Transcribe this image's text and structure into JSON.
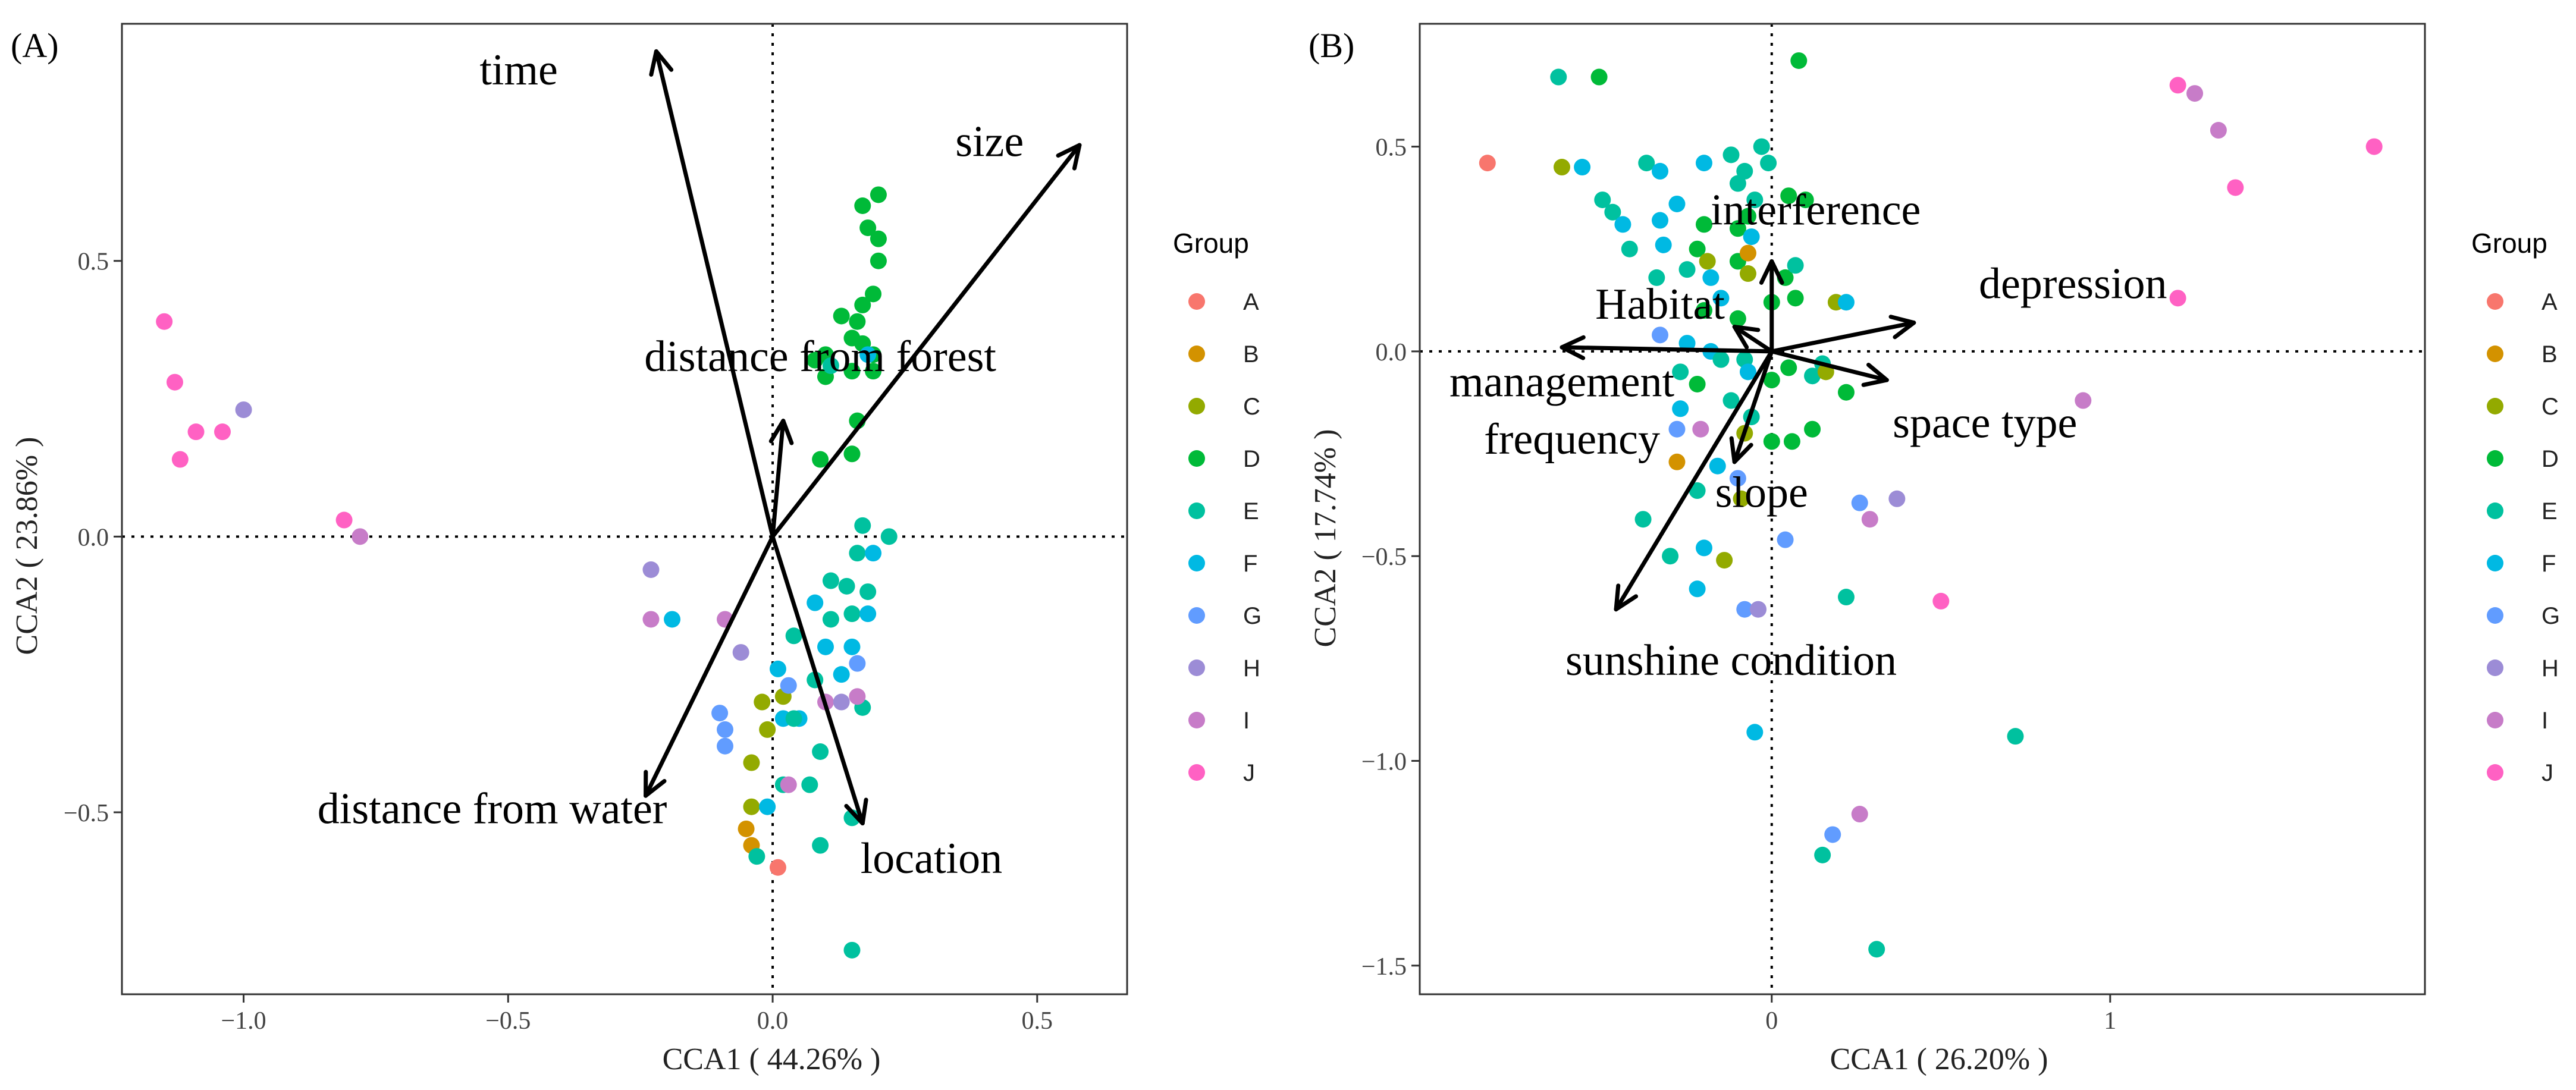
{
  "colors": {
    "A": "#F8766D",
    "B": "#D39200",
    "C": "#93AA00",
    "D": "#00BA38",
    "E": "#00C19F",
    "F": "#00B9E3",
    "G": "#619CFF",
    "H": "#9C8CD6",
    "I": "#C77CC8",
    "J": "#FF61C3"
  },
  "chart_data": [
    {
      "type": "scatter",
      "panel_label": "(A)",
      "xlabel": "CCA1 ( 44.26% )",
      "ylabel": "CCA2 ( 23.86% )",
      "xlim": [
        -1.23,
        0.67
      ],
      "ylim": [
        -0.83,
        0.93
      ],
      "xticks": [
        -1.0,
        -0.5,
        0.0,
        0.5
      ],
      "xtick_labels": [
        "−1.0",
        "−0.5",
        "0.0",
        "0.5"
      ],
      "yticks": [
        -0.5,
        0.0,
        0.5
      ],
      "ytick_labels": [
        "−0.5",
        "0.0",
        "0.5"
      ],
      "legend_title": "Group",
      "legend_entries": [
        "A",
        "B",
        "C",
        "D",
        "E",
        "F",
        "G",
        "H",
        "I",
        "J"
      ],
      "arrows": [
        {
          "label": "time",
          "end": [
            -0.22,
            0.88
          ],
          "label_pos": [
            -0.48,
            0.82
          ]
        },
        {
          "label": "size",
          "end": [
            0.58,
            0.71
          ],
          "label_pos": [
            0.41,
            0.69
          ]
        },
        {
          "label": "distance from forest",
          "end": [
            0.02,
            0.21
          ],
          "label_pos": [
            0.09,
            0.3
          ]
        },
        {
          "label": "distance from water",
          "end": [
            -0.24,
            -0.47
          ],
          "label_pos": [
            -0.53,
            -0.52
          ]
        },
        {
          "label": "location",
          "end": [
            0.17,
            -0.52
          ],
          "label_pos": [
            0.3,
            -0.61
          ]
        }
      ],
      "points": [
        {
          "g": "J",
          "x": -1.15,
          "y": 0.39
        },
        {
          "g": "J",
          "x": -1.13,
          "y": 0.28
        },
        {
          "g": "J",
          "x": -1.09,
          "y": 0.19
        },
        {
          "g": "J",
          "x": -1.04,
          "y": 0.19
        },
        {
          "g": "J",
          "x": -1.12,
          "y": 0.14
        },
        {
          "g": "H",
          "x": -1.0,
          "y": 0.23
        },
        {
          "g": "J",
          "x": -0.81,
          "y": 0.03
        },
        {
          "g": "I",
          "x": -0.78,
          "y": 0.0
        },
        {
          "g": "H",
          "x": -0.23,
          "y": -0.06
        },
        {
          "g": "I",
          "x": -0.23,
          "y": -0.15
        },
        {
          "g": "F",
          "x": -0.19,
          "y": -0.15
        },
        {
          "g": "I",
          "x": -0.09,
          "y": -0.15
        },
        {
          "g": "H",
          "x": -0.06,
          "y": -0.21
        },
        {
          "g": "G",
          "x": -0.1,
          "y": -0.32
        },
        {
          "g": "G",
          "x": -0.09,
          "y": -0.35
        },
        {
          "g": "G",
          "x": -0.09,
          "y": -0.38
        },
        {
          "g": "C",
          "x": -0.04,
          "y": -0.41
        },
        {
          "g": "C",
          "x": -0.04,
          "y": -0.49
        },
        {
          "g": "B",
          "x": -0.05,
          "y": -0.53
        },
        {
          "g": "B",
          "x": -0.04,
          "y": -0.56
        },
        {
          "g": "E",
          "x": -0.03,
          "y": -0.58
        },
        {
          "g": "A",
          "x": 0.01,
          "y": -0.6
        },
        {
          "g": "F",
          "x": -0.01,
          "y": -0.49
        },
        {
          "g": "C",
          "x": -0.02,
          "y": -0.3
        },
        {
          "g": "C",
          "x": 0.02,
          "y": -0.29
        },
        {
          "g": "C",
          "x": -0.01,
          "y": -0.35
        },
        {
          "g": "F",
          "x": 0.02,
          "y": -0.33
        },
        {
          "g": "F",
          "x": 0.05,
          "y": -0.33
        },
        {
          "g": "F",
          "x": 0.01,
          "y": -0.24
        },
        {
          "g": "E",
          "x": 0.04,
          "y": -0.18
        },
        {
          "g": "G",
          "x": 0.03,
          "y": -0.27
        },
        {
          "g": "I",
          "x": 0.1,
          "y": -0.3
        },
        {
          "g": "E",
          "x": 0.08,
          "y": -0.26
        },
        {
          "g": "F",
          "x": 0.1,
          "y": -0.2
        },
        {
          "g": "F",
          "x": 0.08,
          "y": -0.12
        },
        {
          "g": "E",
          "x": 0.11,
          "y": -0.08
        },
        {
          "g": "E",
          "x": 0.11,
          "y": -0.15
        },
        {
          "g": "E",
          "x": 0.14,
          "y": -0.09
        },
        {
          "g": "E",
          "x": 0.15,
          "y": -0.14
        },
        {
          "g": "F",
          "x": 0.15,
          "y": -0.2
        },
        {
          "g": "F",
          "x": 0.13,
          "y": -0.25
        },
        {
          "g": "E",
          "x": 0.16,
          "y": -0.03
        },
        {
          "g": "E",
          "x": 0.17,
          "y": 0.02
        },
        {
          "g": "E",
          "x": 0.22,
          "y": 0.0
        },
        {
          "g": "F",
          "x": 0.19,
          "y": -0.03
        },
        {
          "g": "E",
          "x": 0.18,
          "y": -0.1
        },
        {
          "g": "F",
          "x": 0.18,
          "y": -0.14
        },
        {
          "g": "G",
          "x": 0.16,
          "y": -0.23
        },
        {
          "g": "E",
          "x": 0.17,
          "y": -0.31
        },
        {
          "g": "I",
          "x": 0.16,
          "y": -0.29
        },
        {
          "g": "H",
          "x": 0.13,
          "y": -0.3
        },
        {
          "g": "E",
          "x": 0.09,
          "y": -0.39
        },
        {
          "g": "E",
          "x": 0.02,
          "y": -0.45
        },
        {
          "g": "I",
          "x": 0.03,
          "y": -0.45
        },
        {
          "g": "E",
          "x": 0.07,
          "y": -0.45
        },
        {
          "g": "E",
          "x": 0.09,
          "y": -0.56
        },
        {
          "g": "E",
          "x": 0.15,
          "y": -0.51
        },
        {
          "g": "E",
          "x": 0.15,
          "y": -0.75
        },
        {
          "g": "E",
          "x": 0.04,
          "y": -0.33
        },
        {
          "g": "D",
          "x": 0.17,
          "y": 0.6
        },
        {
          "g": "D",
          "x": 0.2,
          "y": 0.62
        },
        {
          "g": "D",
          "x": 0.18,
          "y": 0.56
        },
        {
          "g": "D",
          "x": 0.2,
          "y": 0.54
        },
        {
          "g": "D",
          "x": 0.2,
          "y": 0.5
        },
        {
          "g": "D",
          "x": 0.19,
          "y": 0.44
        },
        {
          "g": "D",
          "x": 0.17,
          "y": 0.42
        },
        {
          "g": "D",
          "x": 0.16,
          "y": 0.39
        },
        {
          "g": "D",
          "x": 0.13,
          "y": 0.4
        },
        {
          "g": "D",
          "x": 0.15,
          "y": 0.36
        },
        {
          "g": "D",
          "x": 0.17,
          "y": 0.35
        },
        {
          "g": "D",
          "x": 0.19,
          "y": 0.33
        },
        {
          "g": "D",
          "x": 0.1,
          "y": 0.33
        },
        {
          "g": "D",
          "x": 0.08,
          "y": 0.32
        },
        {
          "g": "D",
          "x": 0.15,
          "y": 0.3
        },
        {
          "g": "D",
          "x": 0.19,
          "y": 0.3
        },
        {
          "g": "D",
          "x": 0.1,
          "y": 0.29
        },
        {
          "g": "D",
          "x": 0.16,
          "y": 0.21
        },
        {
          "g": "D",
          "x": 0.15,
          "y": 0.15
        },
        {
          "g": "D",
          "x": 0.09,
          "y": 0.14
        },
        {
          "g": "F",
          "x": 0.18,
          "y": 0.33
        },
        {
          "g": "E",
          "x": 0.11,
          "y": 0.31
        }
      ]
    },
    {
      "type": "scatter",
      "panel_label": "(B)",
      "xlabel": "CCA1 ( 26.20% )",
      "ylabel": "CCA2 ( 17.74% )",
      "xlim": [
        -1.04,
        1.93
      ],
      "ylim": [
        -1.57,
        0.8
      ],
      "xticks": [
        0,
        1
      ],
      "xtick_labels": [
        "0",
        "1"
      ],
      "yticks": [
        -1.5,
        -1.0,
        -0.5,
        0.0,
        0.5
      ],
      "ytick_labels": [
        "−1.5",
        "−1.0",
        "−0.5",
        "0.0",
        "0.5"
      ],
      "legend_title": "Group",
      "legend_entries": [
        "A",
        "B",
        "C",
        "D",
        "E",
        "F",
        "G",
        "H",
        "I",
        "J"
      ],
      "arrows": [
        {
          "label": "interference",
          "end": [
            0.0,
            0.22
          ],
          "label_pos": [
            0.13,
            0.31
          ]
        },
        {
          "label": "depression",
          "end": [
            0.42,
            0.07
          ],
          "label_pos": [
            0.89,
            0.13
          ]
        },
        {
          "label": "Habitat",
          "end": [
            -0.11,
            0.06
          ],
          "label_pos": [
            -0.33,
            0.08
          ]
        },
        {
          "label": "management",
          "end": [
            -0.62,
            0.01
          ],
          "label_pos": [
            -0.62,
            -0.11
          ]
        },
        {
          "label": "frequency",
          "end": [
            -0.62,
            0.01
          ],
          "label_pos": [
            -0.59,
            -0.25
          ]
        },
        {
          "label": "space type",
          "end": [
            0.34,
            -0.07
          ],
          "label_pos": [
            0.63,
            -0.21
          ]
        },
        {
          "label": "slope",
          "end": [
            -0.11,
            -0.27
          ],
          "label_pos": [
            -0.03,
            -0.38
          ]
        },
        {
          "label": "sunshine condition",
          "end": [
            -0.46,
            -0.63
          ],
          "label_pos": [
            -0.12,
            -0.79
          ]
        }
      ],
      "points": [
        {
          "g": "A",
          "x": -0.84,
          "y": 0.46
        },
        {
          "g": "C",
          "x": -0.62,
          "y": 0.45
        },
        {
          "g": "F",
          "x": -0.56,
          "y": 0.45
        },
        {
          "g": "E",
          "x": -0.63,
          "y": 0.67
        },
        {
          "g": "D",
          "x": -0.51,
          "y": 0.67
        },
        {
          "g": "E",
          "x": -0.5,
          "y": 0.37
        },
        {
          "g": "E",
          "x": -0.47,
          "y": 0.34
        },
        {
          "g": "F",
          "x": -0.44,
          "y": 0.31
        },
        {
          "g": "E",
          "x": -0.42,
          "y": 0.25
        },
        {
          "g": "E",
          "x": -0.37,
          "y": 0.46
        },
        {
          "g": "F",
          "x": -0.33,
          "y": 0.44
        },
        {
          "g": "F",
          "x": -0.33,
          "y": 0.32
        },
        {
          "g": "F",
          "x": -0.28,
          "y": 0.36
        },
        {
          "g": "F",
          "x": -0.2,
          "y": 0.46
        },
        {
          "g": "E",
          "x": -0.12,
          "y": 0.48
        },
        {
          "g": "E",
          "x": -0.08,
          "y": 0.44
        },
        {
          "g": "E",
          "x": -0.03,
          "y": 0.5
        },
        {
          "g": "D",
          "x": 0.08,
          "y": 0.71
        },
        {
          "g": "E",
          "x": -0.01,
          "y": 0.46
        },
        {
          "g": "E",
          "x": -0.1,
          "y": 0.41
        },
        {
          "g": "D",
          "x": 0.05,
          "y": 0.38
        },
        {
          "g": "E",
          "x": -0.05,
          "y": 0.37
        },
        {
          "g": "D",
          "x": 0.1,
          "y": 0.37
        },
        {
          "g": "D",
          "x": -0.07,
          "y": 0.33
        },
        {
          "g": "D",
          "x": -0.1,
          "y": 0.3
        },
        {
          "g": "D",
          "x": -0.2,
          "y": 0.31
        },
        {
          "g": "F",
          "x": -0.06,
          "y": 0.28
        },
        {
          "g": "D",
          "x": -0.22,
          "y": 0.25
        },
        {
          "g": "C",
          "x": -0.19,
          "y": 0.22
        },
        {
          "g": "F",
          "x": -0.32,
          "y": 0.26
        },
        {
          "g": "E",
          "x": -0.34,
          "y": 0.18
        },
        {
          "g": "E",
          "x": -0.25,
          "y": 0.2
        },
        {
          "g": "D",
          "x": -0.1,
          "y": 0.22
        },
        {
          "g": "B",
          "x": -0.07,
          "y": 0.24
        },
        {
          "g": "F",
          "x": -0.18,
          "y": 0.18
        },
        {
          "g": "F",
          "x": -0.15,
          "y": 0.13
        },
        {
          "g": "C",
          "x": -0.07,
          "y": 0.19
        },
        {
          "g": "D",
          "x": 0.04,
          "y": 0.18
        },
        {
          "g": "D",
          "x": 0.07,
          "y": 0.13
        },
        {
          "g": "D",
          "x": 0.0,
          "y": 0.12
        },
        {
          "g": "E",
          "x": 0.07,
          "y": 0.21
        },
        {
          "g": "C",
          "x": 0.19,
          "y": 0.12
        },
        {
          "g": "F",
          "x": 0.22,
          "y": 0.12
        },
        {
          "g": "D",
          "x": -0.2,
          "y": 0.1
        },
        {
          "g": "D",
          "x": -0.1,
          "y": 0.08
        },
        {
          "g": "G",
          "x": -0.33,
          "y": 0.04
        },
        {
          "g": "F",
          "x": -0.25,
          "y": 0.02
        },
        {
          "g": "F",
          "x": -0.18,
          "y": 0.0
        },
        {
          "g": "E",
          "x": -0.15,
          "y": -0.02
        },
        {
          "g": "E",
          "x": -0.08,
          "y": -0.02
        },
        {
          "g": "F",
          "x": -0.07,
          "y": -0.05
        },
        {
          "g": "E",
          "x": -0.27,
          "y": -0.05
        },
        {
          "g": "D",
          "x": -0.22,
          "y": -0.08
        },
        {
          "g": "F",
          "x": -0.27,
          "y": -0.14
        },
        {
          "g": "G",
          "x": -0.28,
          "y": -0.19
        },
        {
          "g": "E",
          "x": -0.12,
          "y": -0.12
        },
        {
          "g": "E",
          "x": -0.06,
          "y": -0.16
        },
        {
          "g": "D",
          "x": 0.0,
          "y": -0.07
        },
        {
          "g": "D",
          "x": 0.05,
          "y": -0.04
        },
        {
          "g": "E",
          "x": 0.12,
          "y": -0.06
        },
        {
          "g": "E",
          "x": 0.15,
          "y": -0.03
        },
        {
          "g": "C",
          "x": 0.16,
          "y": -0.05
        },
        {
          "g": "D",
          "x": 0.22,
          "y": -0.1
        },
        {
          "g": "D",
          "x": 0.12,
          "y": -0.19
        },
        {
          "g": "D",
          "x": 0.06,
          "y": -0.22
        },
        {
          "g": "D",
          "x": 0.0,
          "y": -0.22
        },
        {
          "g": "C",
          "x": -0.08,
          "y": -0.2
        },
        {
          "g": "I",
          "x": -0.21,
          "y": -0.19
        },
        {
          "g": "B",
          "x": -0.28,
          "y": -0.27
        },
        {
          "g": "F",
          "x": -0.16,
          "y": -0.28
        },
        {
          "g": "G",
          "x": -0.1,
          "y": -0.31
        },
        {
          "g": "C",
          "x": -0.09,
          "y": -0.36
        },
        {
          "g": "E",
          "x": -0.22,
          "y": -0.34
        },
        {
          "g": "E",
          "x": -0.38,
          "y": -0.41
        },
        {
          "g": "E",
          "x": -0.3,
          "y": -0.5
        },
        {
          "g": "F",
          "x": -0.2,
          "y": -0.48
        },
        {
          "g": "C",
          "x": -0.14,
          "y": -0.51
        },
        {
          "g": "F",
          "x": -0.22,
          "y": -0.58
        },
        {
          "g": "G",
          "x": -0.08,
          "y": -0.63
        },
        {
          "g": "H",
          "x": -0.04,
          "y": -0.63
        },
        {
          "g": "G",
          "x": 0.04,
          "y": -0.46
        },
        {
          "g": "G",
          "x": 0.26,
          "y": -0.37
        },
        {
          "g": "H",
          "x": 0.37,
          "y": -0.36
        },
        {
          "g": "I",
          "x": 0.29,
          "y": -0.41
        },
        {
          "g": "E",
          "x": 0.22,
          "y": -0.6
        },
        {
          "g": "J",
          "x": 0.5,
          "y": -0.61
        },
        {
          "g": "F",
          "x": -0.05,
          "y": -0.93
        },
        {
          "g": "E",
          "x": 0.72,
          "y": -0.94
        },
        {
          "g": "I",
          "x": 0.26,
          "y": -1.13
        },
        {
          "g": "G",
          "x": 0.18,
          "y": -1.18
        },
        {
          "g": "E",
          "x": 0.15,
          "y": -1.23
        },
        {
          "g": "E",
          "x": 0.31,
          "y": -1.46
        },
        {
          "g": "J",
          "x": 1.2,
          "y": 0.65
        },
        {
          "g": "I",
          "x": 1.25,
          "y": 0.63
        },
        {
          "g": "I",
          "x": 1.32,
          "y": 0.54
        },
        {
          "g": "J",
          "x": 1.37,
          "y": 0.4
        },
        {
          "g": "J",
          "x": 1.78,
          "y": 0.5
        },
        {
          "g": "J",
          "x": 1.2,
          "y": 0.13
        },
        {
          "g": "I",
          "x": 0.92,
          "y": -0.12
        }
      ]
    }
  ]
}
